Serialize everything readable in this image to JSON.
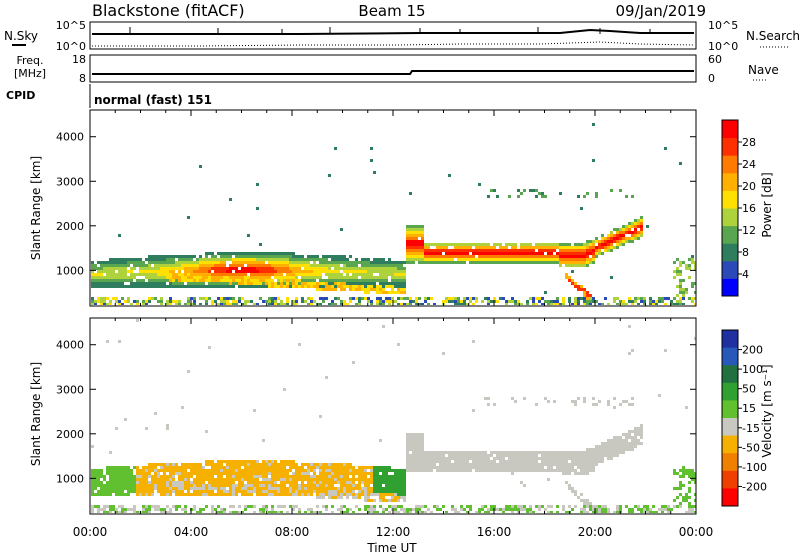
{
  "header": {
    "radar": "Blackstone (fitACF)",
    "beam": "Beam 15",
    "date": "09/Jan/2019"
  },
  "noise_panel": {
    "left_label": "N.Sky",
    "right_label": "N.Search",
    "tick_top": "10^5",
    "tick_bottom": "10^0"
  },
  "freq_panel": {
    "left_label_line1": "Freq.",
    "left_label_line2": "[MHz]",
    "left_ticks": [
      "18",
      "8"
    ],
    "right_label": "Nave",
    "right_ticks": [
      "60",
      "0"
    ]
  },
  "cpid": {
    "label": "CPID",
    "value": "normal (fast) 151"
  },
  "x_axis": {
    "label": "Time UT",
    "ticks": [
      "00:00",
      "04:00",
      "08:00",
      "12:00",
      "16:00",
      "20:00",
      "00:00"
    ]
  },
  "chart_data": [
    {
      "type": "heatmap",
      "name": "power",
      "xlabel": "Time UT",
      "ylabel": "Slant Range [km]",
      "x_ticks": [
        "00:00",
        "04:00",
        "08:00",
        "12:00",
        "16:00",
        "20:00",
        "00:00"
      ],
      "y_ticks": [
        1000,
        2000,
        3000,
        4000
      ],
      "ylim": [
        200,
        4600
      ],
      "colorbar": {
        "label": "Power [dB]",
        "ticks": [
          4,
          8,
          12,
          16,
          20,
          24,
          28
        ],
        "colors": [
          "#0000ff",
          "#2c49b8",
          "#2e7d5e",
          "#5aa550",
          "#aed23c",
          "#ffe000",
          "#ffb000",
          "#ff7a00",
          "#ff3000",
          "#ff0000"
        ]
      }
    },
    {
      "type": "heatmap",
      "name": "velocity",
      "xlabel": "Time UT",
      "ylabel": "Slant Range [km]",
      "x_ticks": [
        "00:00",
        "04:00",
        "08:00",
        "12:00",
        "16:00",
        "20:00",
        "00:00"
      ],
      "y_ticks": [
        1000,
        2000,
        3000,
        4000
      ],
      "ylim": [
        200,
        4600
      ],
      "colorbar": {
        "label": "Velocity [m s⁻¹]",
        "ticks": [
          "200",
          "100",
          "50",
          "15",
          "-15",
          "-50",
          "-100",
          "-200"
        ],
        "colors": [
          "#2030a0",
          "#2858b8",
          "#207040",
          "#30a030",
          "#60c030",
          "#c8c8c0",
          "#f5b000",
          "#f08000",
          "#f04000",
          "#ff0000"
        ]
      }
    }
  ]
}
